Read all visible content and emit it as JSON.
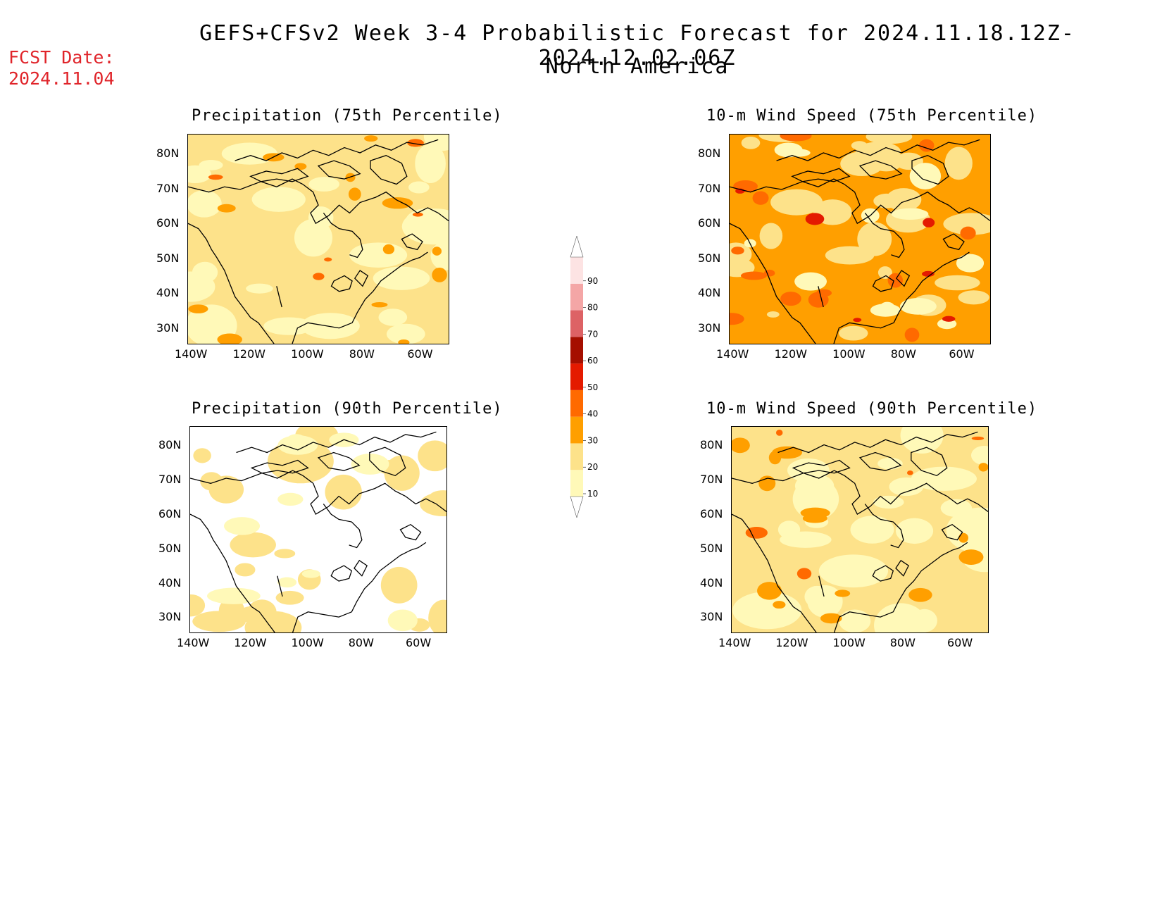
{
  "header": {
    "title": "GEFS+CFSv2 Week 3-4 Probabilistic Forecast for 2024.11.18.12Z-2024.12.02.06Z",
    "subtitle": "North America",
    "fcst_label": "FCST Date:",
    "fcst_date": "2024.11.04"
  },
  "axes": {
    "lat_labels": [
      "80N",
      "70N",
      "60N",
      "50N",
      "40N",
      "30N"
    ],
    "lon_labels": [
      "140W",
      "120W",
      "100W",
      "80W",
      "60W"
    ]
  },
  "panels": [
    {
      "id": "precip75",
      "title": "Precipitation (75th Percentile)",
      "base_color": "#fde28a",
      "dominant_level": 20
    },
    {
      "id": "wind75",
      "title": "10-m Wind Speed (75th Percentile)",
      "base_color": "#ff9f00",
      "dominant_level": 30
    },
    {
      "id": "precip90",
      "title": "Precipitation (90th Percentile)",
      "base_color": "#ffffff",
      "dominant_level": 0
    },
    {
      "id": "wind90",
      "title": "10-m Wind Speed (90th Percentile)",
      "base_color": "#fde28a",
      "dominant_level": 20
    }
  ],
  "colorbar": {
    "levels": [
      "10",
      "20",
      "30",
      "40",
      "50",
      "60",
      "70",
      "80",
      "90"
    ],
    "colors": [
      "#fff9b8",
      "#fde28a",
      "#ff9f00",
      "#ff6a00",
      "#e41a00",
      "#a50f00",
      "#dd6265",
      "#f4a6a6",
      "#fde3e3"
    ]
  }
}
